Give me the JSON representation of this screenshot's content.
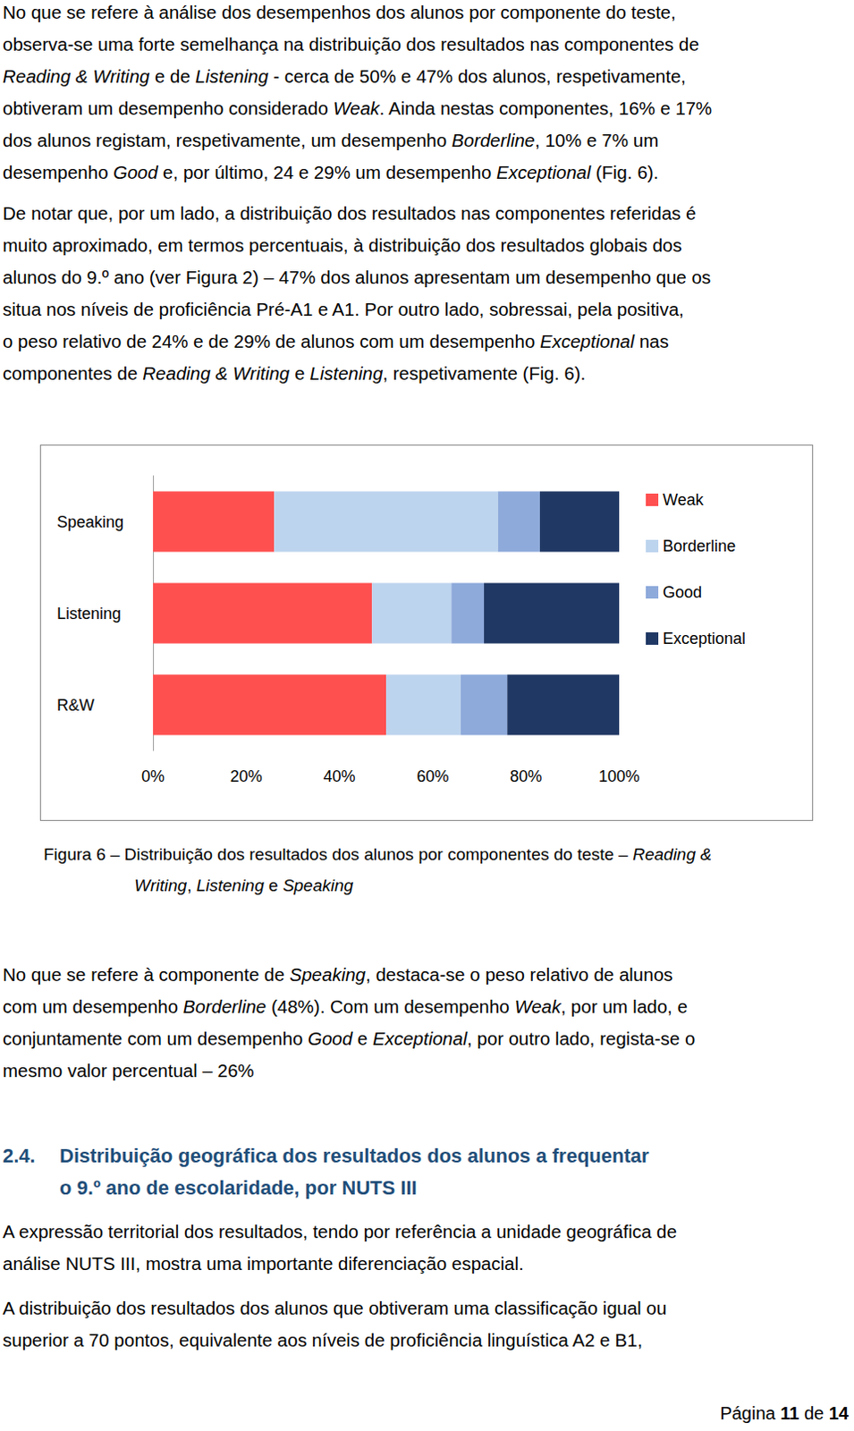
{
  "document": {
    "paragraphs_top": [
      {
        "lines": [
          [
            "No que se refere à análise dos desempenhos dos alunos por componente do teste,"
          ],
          [
            "observa-se uma forte semelhança na distribuição dos resultados nas componentes de"
          ],
          [
            {
              "i": "Reading & Writing"
            },
            " e de ",
            {
              "i": "Listening"
            },
            " - cerca de 50% e 47% dos alunos, respetivamente,"
          ],
          [
            "obtiveram um desempenho considerado ",
            {
              "i": "Weak"
            },
            ". Ainda nestas componentes, 16% e 17%"
          ],
          [
            "dos alunos registam, respetivamente, um desempenho ",
            {
              "i": "Borderline"
            },
            ", 10% e 7% um"
          ],
          [
            "desempenho ",
            {
              "i": "Good"
            },
            " e, por último, 24 e 29% um desempenho ",
            {
              "i": "Exceptional"
            },
            " (Fig. 6)."
          ]
        ]
      },
      {
        "lines": [
          [
            "De notar que, por um lado, a distribuição dos resultados nas componentes referidas é"
          ],
          [
            "muito aproximado, em termos percentuais, à distribuição dos resultados globais dos"
          ],
          [
            "alunos do 9.º ano (ver Figura 2) – 47% dos alunos apresentam um desempenho que os"
          ],
          [
            "situa nos níveis de proficiência Pré-A1 e A1. Por outro lado, sobressai, pela positiva,"
          ],
          [
            "o peso relativo de 24% e de 29% de alunos com um desempenho ",
            {
              "i": "Exceptional"
            },
            " nas"
          ],
          [
            "componentes de ",
            {
              "i": "Reading & Writing"
            },
            " e ",
            {
              "i": "Listening"
            },
            ", respetivamente (Fig. 6)."
          ]
        ]
      }
    ],
    "caption": {
      "lines": [
        [
          "Figura 6 – Distribuição dos resultados dos alunos por componentes do teste – ",
          {
            "i": "Reading &"
          }
        ],
        [
          {
            "i": "Writing"
          },
          ", ",
          {
            "i": "Listening"
          },
          " e ",
          {
            "i": "Speaking"
          }
        ]
      ]
    },
    "paragraph_after": {
      "lines": [
        [
          "No que se refere à componente de ",
          {
            "i": "Speaking"
          },
          ", destaca-se o peso relativo de alunos"
        ],
        [
          "com um desempenho ",
          {
            "i": "Borderline"
          },
          " (48%). Com um desempenho ",
          {
            "i": "Weak"
          },
          ", por um lado, e"
        ],
        [
          "conjuntamente com um desempenho ",
          {
            "i": "Good"
          },
          " e ",
          {
            "i": "Exceptional"
          },
          ", por outro lado, regista-se o"
        ],
        [
          "mesmo valor percentual – 26%"
        ]
      ]
    },
    "heading": {
      "number": "2.4.",
      "lines": [
        "Distribuição geográfica dos resultados dos alunos a frequentar",
        "o 9.º ano de escolaridade, por NUTS III"
      ]
    },
    "paragraphs_bottom": [
      {
        "lines": [
          [
            "A expressão territorial dos resultados, tendo por referência a unidade geográfica de"
          ],
          [
            "análise NUTS III, mostra uma importante diferenciação espacial."
          ]
        ]
      },
      {
        "lines": [
          [
            "A distribuição dos resultados dos alunos que obtiveram uma classificação igual ou"
          ],
          [
            "superior a 70 pontos, equivalente aos níveis de proficiência linguística A2 e B1,"
          ]
        ]
      }
    ],
    "footer": [
      "Página ",
      {
        "b": "11"
      },
      " de ",
      {
        "b": "14"
      }
    ]
  },
  "chart_data": {
    "type": "bar",
    "orientation": "horizontal",
    "stacked": true,
    "categories": [
      "Speaking",
      "Listening",
      "R&W"
    ],
    "series": [
      {
        "name": "Weak",
        "color": "#ff5050",
        "values": [
          26,
          47,
          50
        ]
      },
      {
        "name": "Borderline",
        "color": "#bdd4ee",
        "values": [
          48,
          17,
          16
        ]
      },
      {
        "name": "Good",
        "color": "#8eaadb",
        "values": [
          9,
          7,
          10
        ]
      },
      {
        "name": "Exceptional",
        "color": "#203864",
        "values": [
          17,
          29,
          24
        ]
      }
    ],
    "xlim": [
      0,
      100
    ],
    "xticks": [
      {
        "value": 0,
        "label": "0%"
      },
      {
        "value": 20,
        "label": "20%"
      },
      {
        "value": 40,
        "label": "40%"
      },
      {
        "value": 60,
        "label": "60%"
      },
      {
        "value": 80,
        "label": "80%"
      },
      {
        "value": 100,
        "label": "100%"
      }
    ],
    "grid": false,
    "legend": "right"
  }
}
